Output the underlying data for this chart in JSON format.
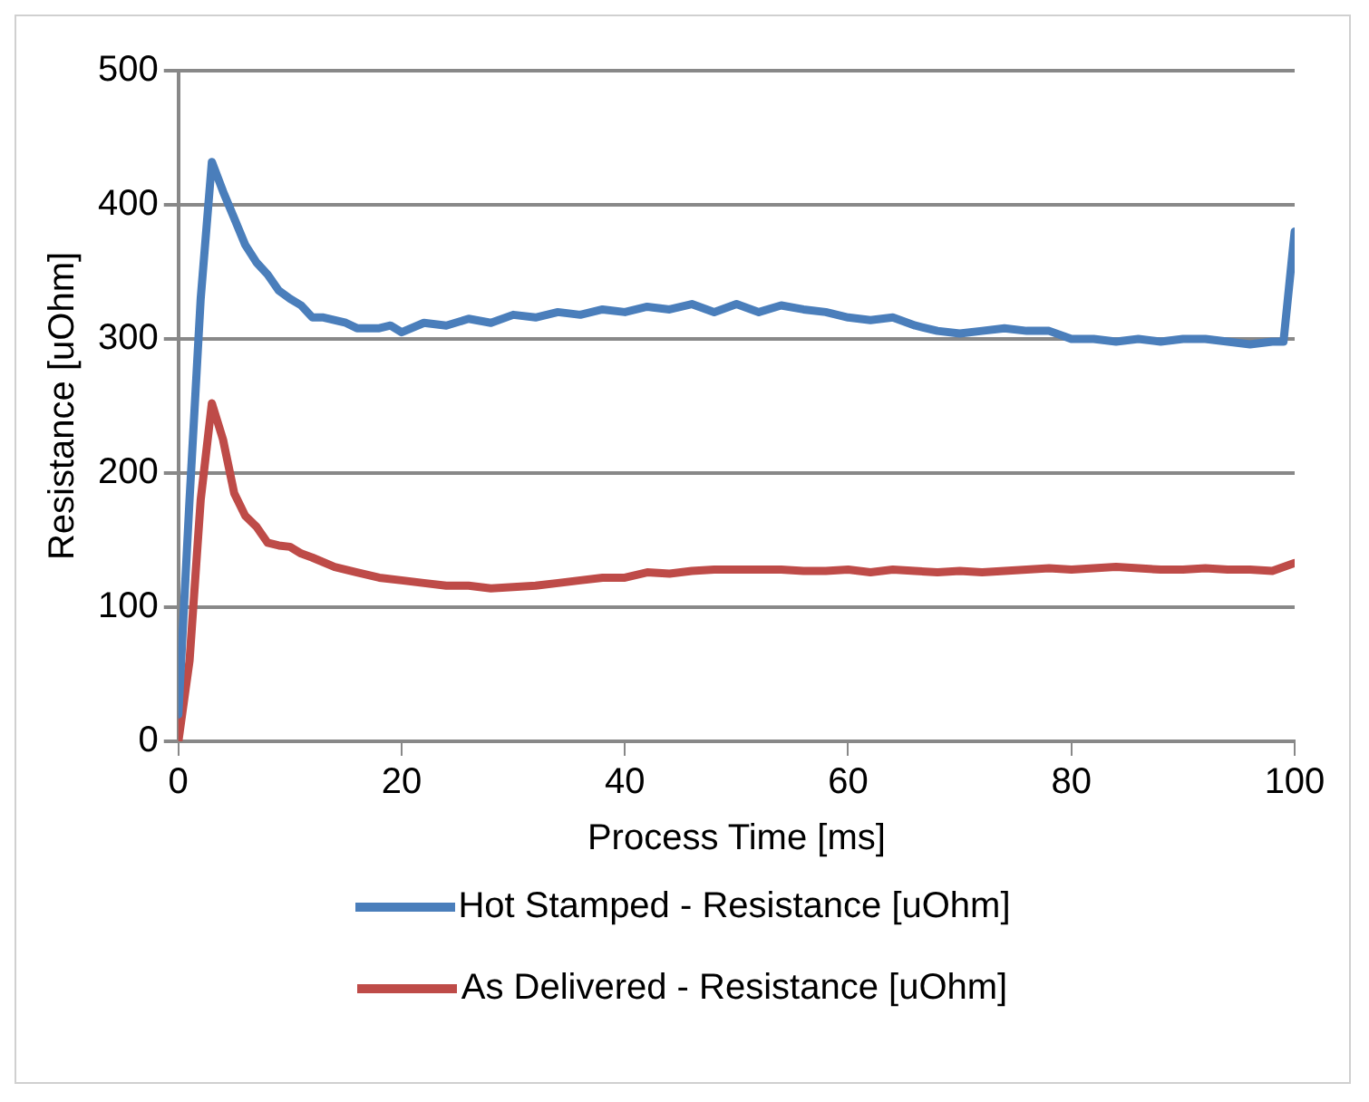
{
  "chart_data": {
    "type": "line",
    "xlabel": "Process Time [ms]",
    "ylabel": "Resistance [uOhm]",
    "xlim": [
      0,
      100
    ],
    "xticks": [
      0,
      20,
      40,
      60,
      80,
      100
    ],
    "ylim": [
      0,
      500
    ],
    "yticks": [
      0,
      100,
      200,
      300,
      400,
      500
    ],
    "grid": "y",
    "legend": "bottom",
    "marker": "none",
    "line_style": "solid",
    "series": [
      {
        "name": "Hot Stamped - Resistance [uOhm]",
        "color": "#4a7ebb",
        "x": [
          0,
          1,
          2,
          3,
          4,
          5,
          6,
          7,
          8,
          9,
          10,
          11,
          12,
          13,
          15,
          16,
          18,
          19,
          20,
          22,
          24,
          26,
          28,
          30,
          32,
          34,
          36,
          38,
          40,
          42,
          44,
          46,
          48,
          50,
          52,
          54,
          56,
          58,
          60,
          62,
          64,
          66,
          68,
          70,
          72,
          74,
          76,
          78,
          80,
          82,
          84,
          86,
          88,
          90,
          92,
          94,
          96,
          98,
          99,
          100
        ],
        "values": [
          20,
          180,
          330,
          432,
          410,
          390,
          370,
          357,
          348,
          336,
          330,
          325,
          316,
          316,
          312,
          308,
          308,
          310,
          305,
          312,
          310,
          315,
          312,
          318,
          316,
          320,
          318,
          322,
          320,
          324,
          322,
          326,
          320,
          326,
          320,
          325,
          322,
          320,
          316,
          314,
          316,
          310,
          306,
          304,
          306,
          308,
          306,
          306,
          300,
          300,
          298,
          300,
          298,
          300,
          300,
          298,
          296,
          298,
          298,
          380
        ]
      },
      {
        "name": "As Delivered - Resistance [uOhm]",
        "color": "#be4b48",
        "x": [
          0,
          1,
          2,
          3,
          4,
          5,
          6,
          7,
          8,
          9,
          10,
          11,
          12,
          14,
          16,
          18,
          20,
          22,
          24,
          26,
          28,
          30,
          32,
          34,
          36,
          38,
          40,
          42,
          44,
          46,
          48,
          50,
          52,
          54,
          56,
          58,
          60,
          62,
          64,
          66,
          68,
          70,
          72,
          74,
          76,
          78,
          80,
          82,
          84,
          86,
          88,
          90,
          92,
          94,
          96,
          98,
          100
        ],
        "values": [
          0,
          60,
          180,
          252,
          225,
          185,
          168,
          160,
          148,
          146,
          145,
          140,
          137,
          130,
          126,
          122,
          120,
          118,
          116,
          116,
          114,
          115,
          116,
          118,
          120,
          122,
          122,
          126,
          125,
          127,
          128,
          128,
          128,
          128,
          127,
          127,
          128,
          126,
          128,
          127,
          126,
          127,
          126,
          127,
          128,
          129,
          128,
          129,
          130,
          129,
          128,
          128,
          129,
          128,
          128,
          127,
          133
        ]
      }
    ]
  }
}
